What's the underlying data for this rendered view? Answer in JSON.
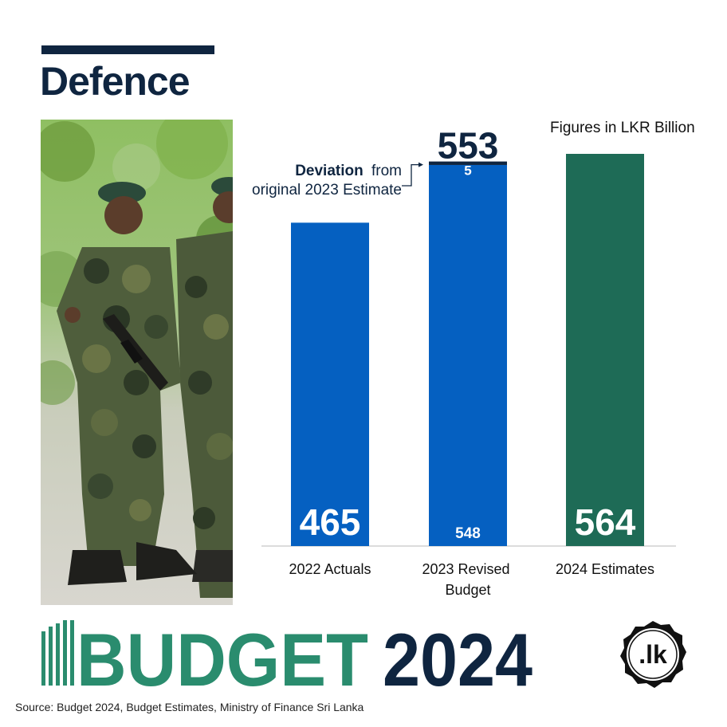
{
  "header": {
    "title": "Defence"
  },
  "units_note": "Figures in LKR Billion",
  "chart_data": {
    "type": "bar",
    "categories": [
      "2022 Actuals",
      "2023 Revised Budget",
      "2024 Estimates"
    ],
    "category_lines": [
      [
        "2022 Actuals"
      ],
      [
        "2023 Revised",
        "Budget"
      ],
      [
        "2024 Estimates"
      ]
    ],
    "values": [
      465,
      553,
      564
    ],
    "stack": {
      "category": "2023 Revised Budget",
      "base_value": 548,
      "base_label": "548",
      "deviation_value": 5,
      "deviation_label": "5",
      "total_label": "553"
    },
    "value_labels": [
      "465",
      "",
      "564"
    ],
    "annotation": {
      "bold": "Deviation",
      "rest_line1": "from",
      "line2": "original 2023 Estimate"
    },
    "colors": {
      "blue": "#0560c1",
      "green": "#1e6b56",
      "navy": "#0f2540"
    },
    "ylim": [
      0,
      600
    ],
    "grid": false,
    "legend": "none"
  },
  "footer": {
    "budget_word": "BUDGET",
    "year": "2024",
    "brand": ".lk",
    "source": "Source: Budget 2024, Budget Estimates, Ministry of Finance Sri Lanka"
  },
  "photo": {
    "subject": "soldiers in camouflage"
  }
}
